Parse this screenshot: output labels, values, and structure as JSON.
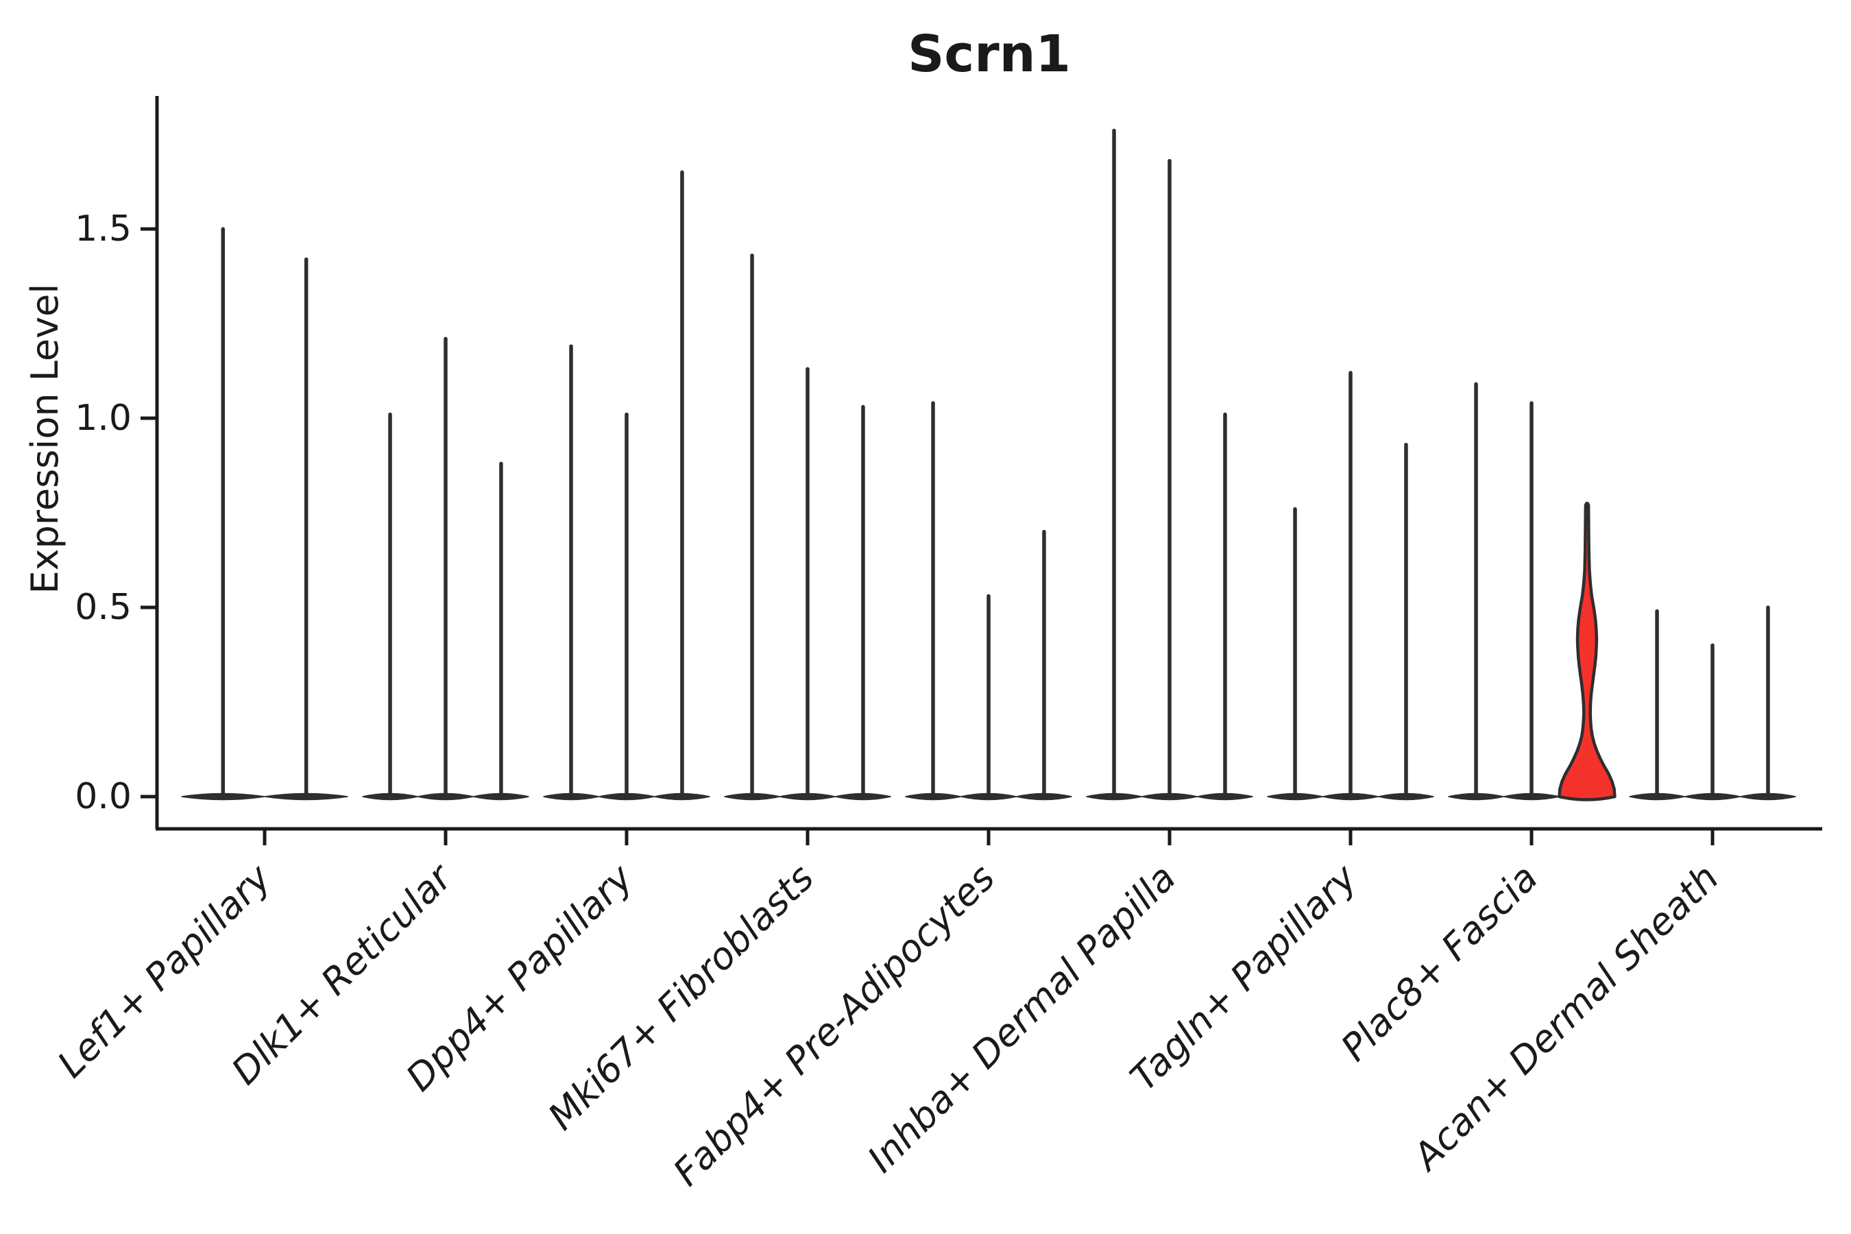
{
  "title": "Scrn1",
  "ylabel": "Expression Level",
  "chart_data": {
    "type": "violin",
    "title": "Scrn1",
    "xlabel": "",
    "ylabel": "Expression Level",
    "ylim": [
      0,
      1.85
    ],
    "grid": false,
    "legend": "none",
    "yticks": [
      0.0,
      0.5,
      1.0,
      1.5
    ],
    "ytick_labels": [
      "0.0",
      "0.5",
      "1.0",
      "1.5"
    ],
    "categories": [
      "Lef1+ Papillary",
      "Dlk1+ Reticular",
      "Dpp4+ Papillary",
      "Mki67+ Fibroblasts",
      "Fabp4+ Pre-Adipocytes",
      "Inhba+ Dermal Papilla",
      "Tagln+ Papillary",
      "Plac8+ Fascia",
      "Acan+ Dermal Sheath"
    ],
    "violin_outline_color": "#2e2e2e",
    "highlight_fill_color": "#F4322B",
    "groups": [
      {
        "category": "Lef1+ Papillary",
        "violins": [
          {
            "max_expression": 1.5
          },
          {
            "max_expression": 1.42
          }
        ]
      },
      {
        "category": "Dlk1+ Reticular",
        "violins": [
          {
            "max_expression": 1.01
          },
          {
            "max_expression": 1.21
          },
          {
            "max_expression": 0.88
          }
        ]
      },
      {
        "category": "Dpp4+ Papillary",
        "violins": [
          {
            "max_expression": 1.19
          },
          {
            "max_expression": 1.01
          },
          {
            "max_expression": 1.65
          }
        ]
      },
      {
        "category": "Mki67+ Fibroblasts",
        "violins": [
          {
            "max_expression": 1.43
          },
          {
            "max_expression": 1.13
          },
          {
            "max_expression": 1.03
          }
        ]
      },
      {
        "category": "Fabp4+ Pre-Adipocytes",
        "violins": [
          {
            "max_expression": 1.04
          },
          {
            "max_expression": 0.53
          },
          {
            "max_expression": 0.7
          }
        ]
      },
      {
        "category": "Inhba+ Dermal Papilla",
        "violins": [
          {
            "max_expression": 1.76
          },
          {
            "max_expression": 1.68
          },
          {
            "max_expression": 1.01
          }
        ]
      },
      {
        "category": "Tagln+ Papillary",
        "violins": [
          {
            "max_expression": 0.76
          },
          {
            "max_expression": 1.12
          },
          {
            "max_expression": 0.93
          }
        ]
      },
      {
        "category": "Plac8+ Fascia",
        "violins": [
          {
            "max_expression": 1.09
          },
          {
            "max_expression": 1.04
          },
          {
            "max_expression": 0.77,
            "highlight": true,
            "profile": [
              [
                0.0,
                0.5
              ],
              [
                0.02,
                0.49
              ],
              [
                0.04,
                0.45
              ],
              [
                0.06,
                0.39
              ],
              [
                0.08,
                0.31
              ],
              [
                0.1,
                0.24
              ],
              [
                0.12,
                0.18
              ],
              [
                0.14,
                0.13
              ],
              [
                0.16,
                0.095
              ],
              [
                0.18,
                0.075
              ],
              [
                0.2,
                0.064
              ],
              [
                0.22,
                0.058
              ],
              [
                0.245,
                0.062
              ],
              [
                0.27,
                0.075
              ],
              [
                0.295,
                0.095
              ],
              [
                0.32,
                0.118
              ],
              [
                0.345,
                0.14
              ],
              [
                0.37,
                0.158
              ],
              [
                0.4,
                0.17
              ],
              [
                0.42,
                0.172
              ],
              [
                0.445,
                0.165
              ],
              [
                0.47,
                0.15
              ],
              [
                0.5,
                0.12
              ],
              [
                0.53,
                0.085
              ],
              [
                0.565,
                0.058
              ],
              [
                0.6,
                0.042
              ],
              [
                0.65,
                0.034
              ],
              [
                0.7,
                0.03
              ],
              [
                0.77,
                0.026
              ]
            ]
          }
        ]
      },
      {
        "category": "Acan+ Dermal Sheath",
        "violins": [
          {
            "max_expression": 0.49
          },
          {
            "max_expression": 0.4
          },
          {
            "max_expression": 0.5
          }
        ]
      }
    ]
  }
}
